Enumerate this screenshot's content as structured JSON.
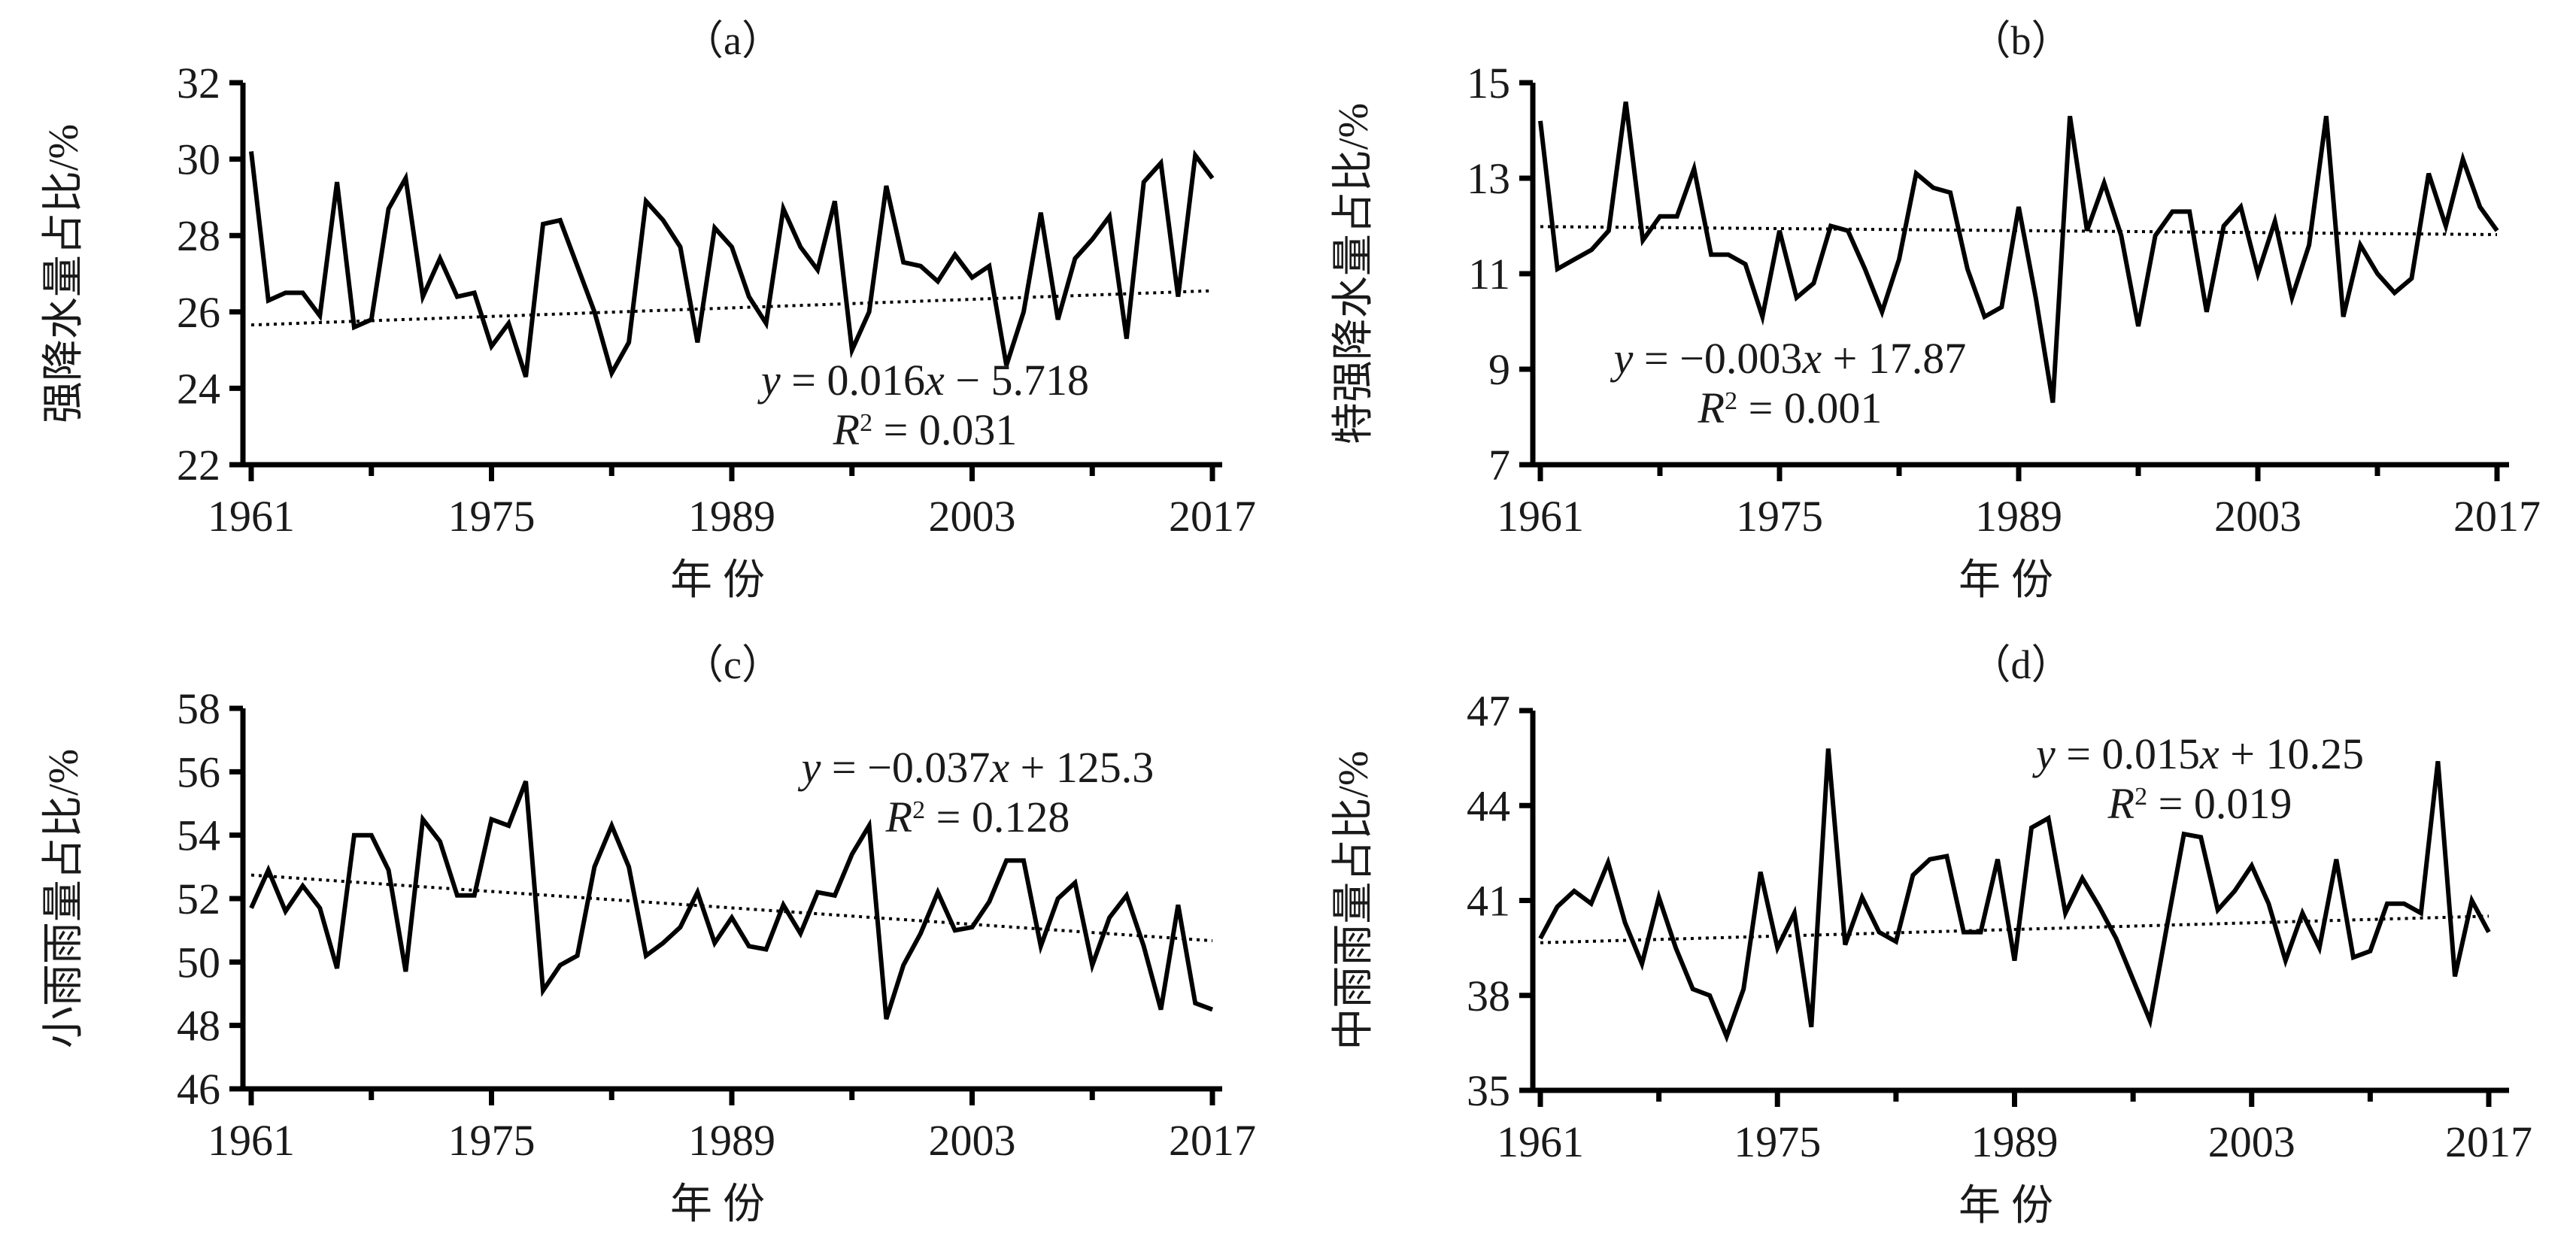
{
  "chart_data": [
    {
      "id": "a",
      "type": "line",
      "panel_label": "（a）",
      "ylabel": "强降水量占比/%",
      "xlabel": "年 份",
      "x_start": 1961,
      "x_end": 2017,
      "xticks": [
        1961,
        1975,
        1989,
        2003,
        2017
      ],
      "xtick_minor": [
        1968,
        1982,
        1996,
        2010
      ],
      "yticks": [
        22,
        24,
        26,
        28,
        30,
        32
      ],
      "ylim": [
        22,
        32
      ],
      "trendline": {
        "slope": 0.016,
        "intercept": -5.718,
        "style": "dotted"
      },
      "equation": {
        "y": "y",
        "rhs": " = 0.016",
        "x": "x",
        "tail": " − 5.718",
        "r2_label": "R",
        "r2_sup": "2",
        "r2_value": " = 0.031"
      },
      "legend_position": "bottom-right",
      "values": [
        30.2,
        26.3,
        26.5,
        26.5,
        25.9,
        29.4,
        25.6,
        25.8,
        28.7,
        29.5,
        26.4,
        27.4,
        26.4,
        26.5,
        25.1,
        25.7,
        24.3,
        28.3,
        28.4,
        27.2,
        26.0,
        24.4,
        25.2,
        28.9,
        28.4,
        27.7,
        25.2,
        28.2,
        27.7,
        26.4,
        25.7,
        28.7,
        27.7,
        27.1,
        28.9,
        25.0,
        26.0,
        29.3,
        27.3,
        27.2,
        26.8,
        27.5,
        26.9,
        27.2,
        24.6,
        26.0,
        28.6,
        25.8,
        27.4,
        27.9,
        28.5,
        25.3,
        29.4,
        29.9,
        26.4,
        30.1,
        29.5
      ]
    },
    {
      "id": "b",
      "type": "line",
      "panel_label": "（b）",
      "ylabel": "特强降水量占比/%",
      "xlabel": "年 份",
      "x_start": 1961,
      "x_end": 2017,
      "xticks": [
        1961,
        1975,
        1989,
        2003,
        2017
      ],
      "xtick_minor": [
        1968,
        1982,
        1996,
        2010
      ],
      "yticks": [
        7,
        9,
        11,
        13,
        15
      ],
      "ylim": [
        7,
        15
      ],
      "trendline": {
        "slope": -0.003,
        "intercept": 17.87,
        "style": "dotted"
      },
      "equation": {
        "y": "y",
        "rhs": " = −0.003",
        "x": "x",
        "tail": " + 17.87",
        "r2_label": "R",
        "r2_sup": "2",
        "r2_value": " = 0.001"
      },
      "legend_position": "bottom-left",
      "values": [
        14.2,
        11.1,
        11.3,
        11.5,
        11.9,
        14.6,
        11.7,
        12.2,
        12.2,
        13.2,
        11.4,
        11.4,
        11.2,
        10.1,
        11.9,
        10.5,
        10.8,
        12.0,
        11.9,
        11.1,
        10.2,
        11.3,
        13.1,
        12.8,
        12.7,
        11.1,
        10.1,
        10.3,
        12.4,
        10.5,
        8.3,
        14.3,
        11.9,
        12.9,
        11.8,
        9.9,
        11.8,
        12.3,
        12.3,
        10.2,
        12.0,
        12.4,
        11.0,
        12.1,
        10.5,
        11.6,
        14.3,
        10.1,
        11.6,
        11.0,
        10.6,
        10.9,
        13.1,
        12.0,
        13.4,
        12.4,
        11.9
      ]
    },
    {
      "id": "c",
      "type": "line",
      "panel_label": "（c）",
      "ylabel": "小雨雨量占比/%",
      "xlabel": "年 份",
      "x_start": 1961,
      "x_end": 2017,
      "xticks": [
        1961,
        1975,
        1989,
        2003,
        2017
      ],
      "xtick_minor": [
        1968,
        1982,
        1996,
        2010
      ],
      "yticks": [
        46,
        48,
        50,
        52,
        54,
        56,
        58
      ],
      "ylim": [
        46,
        58
      ],
      "trendline": {
        "slope": -0.037,
        "intercept": 125.3,
        "style": "dotted"
      },
      "equation": {
        "y": "y",
        "rhs": " = −0.037",
        "x": "x",
        "tail": " + 125.3",
        "r2_label": "R",
        "r2_sup": "2",
        "r2_value": " = 0.128"
      },
      "legend_position": "top-right",
      "values": [
        51.7,
        52.9,
        51.6,
        52.4,
        51.7,
        49.8,
        54.0,
        54.0,
        52.9,
        49.7,
        54.5,
        53.8,
        52.1,
        52.1,
        54.5,
        54.3,
        55.7,
        49.1,
        49.9,
        50.2,
        53.0,
        54.3,
        53.0,
        50.2,
        50.6,
        51.1,
        52.2,
        50.6,
        51.4,
        50.5,
        50.4,
        51.8,
        50.9,
        52.2,
        52.1,
        53.4,
        54.3,
        48.2,
        49.9,
        50.9,
        52.2,
        51.0,
        51.1,
        51.9,
        53.2,
        53.2,
        50.5,
        52.0,
        52.5,
        49.9,
        51.4,
        52.1,
        50.5,
        48.5,
        51.8,
        48.7,
        48.5
      ]
    },
    {
      "id": "d",
      "type": "line",
      "panel_label": "（d）",
      "ylabel": "中雨雨量占比/%",
      "xlabel": "年 份",
      "x_start": 1961,
      "x_end": 2017,
      "xticks": [
        1961,
        1975,
        1989,
        2003,
        2017
      ],
      "xtick_minor": [
        1968,
        1982,
        1996,
        2010
      ],
      "yticks": [
        35,
        38,
        41,
        44,
        47
      ],
      "ylim": [
        35,
        47
      ],
      "trendline": {
        "slope": 0.015,
        "intercept": 10.25,
        "style": "dotted"
      },
      "equation": {
        "y": "y",
        "rhs": " = 0.015",
        "x": "x",
        "tail": " + 10.25",
        "r2_label": "R",
        "r2_sup": "2",
        "r2_value": " = 0.019"
      },
      "legend_position": "top-right",
      "values": [
        39.8,
        40.8,
        41.3,
        40.9,
        42.2,
        40.3,
        39.0,
        41.1,
        39.5,
        38.2,
        38.0,
        36.7,
        38.2,
        41.9,
        39.5,
        40.6,
        37.0,
        45.8,
        39.6,
        41.1,
        40.0,
        39.7,
        41.8,
        42.3,
        42.4,
        40.0,
        40.0,
        42.3,
        39.1,
        43.3,
        43.6,
        40.6,
        41.7,
        40.8,
        39.8,
        38.5,
        37.2,
        40.2,
        43.1,
        43.0,
        40.7,
        41.3,
        42.1,
        40.9,
        39.1,
        40.6,
        39.5,
        42.3,
        39.2,
        39.4,
        40.9,
        40.9,
        40.6,
        45.4,
        38.6,
        41.0,
        40.0
      ]
    }
  ]
}
